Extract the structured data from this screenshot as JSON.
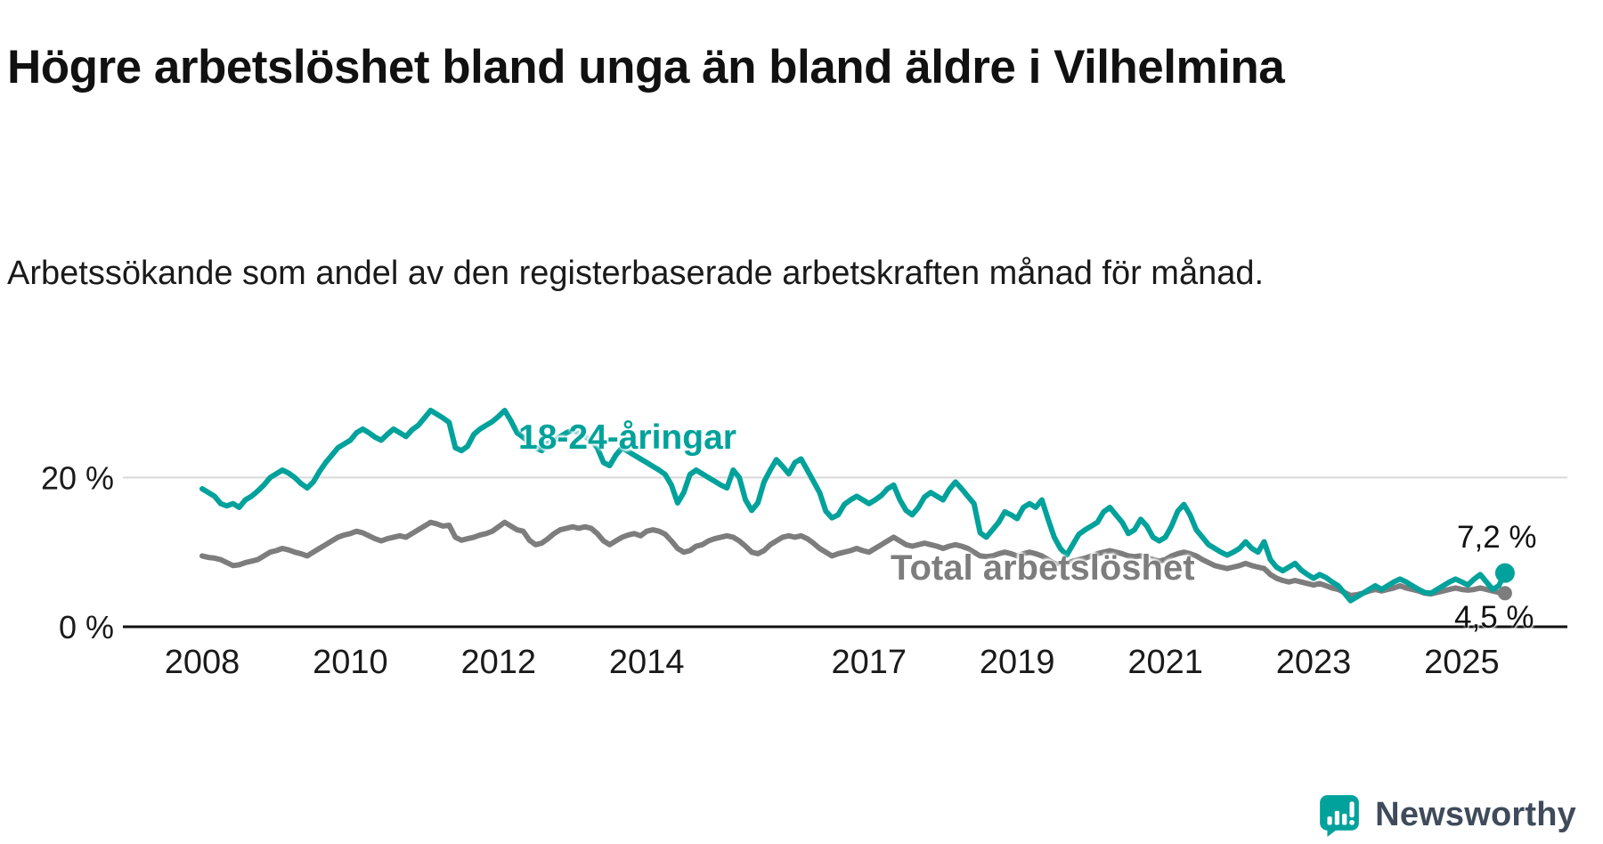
{
  "chart_data": {
    "type": "line",
    "title": "Högre arbetslöshet bland unga än bland äldre i Vilhelmina",
    "subtitle": "Arbetssökande som andel av den registerbaserade arbetskraften månad för månad.",
    "unit": "%",
    "x_start": 2008.0,
    "x_step": 0.083333,
    "xlim": [
      2007.4,
      2026.5
    ],
    "ylim": [
      0,
      31
    ],
    "grid": "horizontal",
    "grid_values": [
      20
    ],
    "yticks": [
      {
        "value": 0,
        "label": "0 %"
      },
      {
        "value": 20,
        "label": "20 %"
      }
    ],
    "xticks": [
      {
        "value": 2008,
        "label": "2008"
      },
      {
        "value": 2010,
        "label": "2010"
      },
      {
        "value": 2012,
        "label": "2012"
      },
      {
        "value": 2014,
        "label": "2014"
      },
      {
        "value": 2017,
        "label": "2017"
      },
      {
        "value": 2019,
        "label": "2019"
      },
      {
        "value": 2021,
        "label": "2021"
      },
      {
        "value": 2023,
        "label": "2023"
      },
      {
        "value": 2025,
        "label": "2025"
      }
    ],
    "series": [
      {
        "name": "Total arbetslöshet",
        "color": "#7d7d7d",
        "end_value": 4.5,
        "end_label": "4,5 %",
        "values": [
          9.5,
          9.3,
          9.2,
          9.0,
          8.6,
          8.2,
          8.3,
          8.6,
          8.8,
          9.0,
          9.5,
          10.0,
          10.2,
          10.5,
          10.3,
          10.0,
          9.8,
          9.5,
          10.0,
          10.5,
          11.0,
          11.5,
          12.0,
          12.3,
          12.5,
          12.8,
          12.6,
          12.2,
          11.8,
          11.5,
          11.8,
          12.0,
          12.2,
          12.0,
          12.5,
          13.0,
          13.5,
          14.0,
          13.8,
          13.5,
          13.6,
          12.0,
          11.6,
          11.8,
          12.0,
          12.3,
          12.5,
          12.8,
          13.4,
          14.0,
          13.5,
          13.0,
          12.8,
          11.6,
          11.0,
          11.2,
          11.8,
          12.5,
          13.0,
          13.2,
          13.4,
          13.2,
          13.4,
          13.2,
          12.5,
          11.5,
          11.0,
          11.5,
          12.0,
          12.3,
          12.5,
          12.2,
          12.8,
          13.0,
          12.8,
          12.4,
          11.5,
          10.5,
          10.0,
          10.2,
          10.8,
          11.0,
          11.5,
          11.8,
          12.0,
          12.2,
          12.0,
          11.5,
          10.8,
          10.0,
          9.8,
          10.2,
          11.0,
          11.5,
          12.0,
          12.2,
          12.0,
          12.2,
          11.8,
          11.2,
          10.5,
          10.0,
          9.5,
          9.8,
          10.0,
          10.2,
          10.5,
          10.2,
          10.0,
          10.5,
          11.0,
          11.5,
          12.0,
          11.5,
          11.0,
          10.8,
          11.0,
          11.2,
          11.0,
          10.8,
          10.5,
          10.8,
          11.0,
          10.8,
          10.5,
          10.0,
          9.5,
          9.4,
          9.5,
          9.8,
          10.0,
          9.8,
          9.5,
          9.8,
          10.0,
          9.8,
          9.5,
          9.0,
          8.5,
          8.4,
          8.5,
          8.8,
          9.0,
          9.2,
          9.5,
          9.8,
          10.0,
          10.2,
          10.0,
          9.8,
          9.5,
          9.4,
          9.5,
          9.3,
          9.0,
          8.8,
          9.0,
          9.5,
          9.8,
          10.0,
          9.8,
          9.5,
          9.0,
          8.6,
          8.2,
          8.0,
          7.8,
          8.0,
          8.2,
          8.5,
          8.2,
          8.0,
          7.8,
          7.0,
          6.5,
          6.2,
          6.0,
          6.2,
          6.0,
          5.8,
          5.6,
          5.8,
          5.5,
          5.2,
          5.0,
          4.6,
          4.2,
          4.3,
          4.5,
          4.8,
          5.0,
          4.8,
          5.0,
          5.2,
          5.5,
          5.2,
          5.0,
          4.8,
          4.5,
          4.4,
          4.6,
          4.8,
          5.0,
          5.2,
          5.0,
          4.9,
          5.0,
          5.2,
          5.0,
          4.8,
          4.6,
          4.5
        ]
      },
      {
        "name": "18-24-åringar",
        "color": "#00a29b",
        "end_value": 7.2,
        "end_label": "7,2 %",
        "values": [
          18.5,
          18.0,
          17.5,
          16.5,
          16.2,
          16.5,
          16.0,
          17.0,
          17.5,
          18.2,
          19.0,
          20.0,
          20.5,
          21.0,
          20.6,
          20.0,
          19.2,
          18.6,
          19.4,
          20.8,
          22.0,
          23.0,
          24.0,
          24.5,
          25.0,
          26.0,
          26.5,
          26.0,
          25.4,
          25.0,
          25.8,
          26.5,
          26.0,
          25.5,
          26.4,
          27.0,
          28.0,
          29.0,
          28.5,
          28.0,
          27.4,
          24.0,
          23.6,
          24.2,
          25.8,
          26.5,
          27.0,
          27.5,
          28.2,
          29.0,
          27.6,
          26.0,
          25.4,
          24.6,
          24.0,
          23.6,
          24.6,
          25.0,
          25.5,
          26.0,
          26.4,
          26.0,
          25.5,
          25.0,
          24.0,
          22.0,
          21.6,
          23.0,
          24.0,
          23.5,
          23.0,
          22.5,
          22.0,
          21.5,
          21.0,
          20.4,
          19.0,
          16.6,
          18.0,
          20.4,
          21.0,
          20.5,
          20.0,
          19.5,
          19.0,
          18.6,
          21.0,
          20.0,
          17.0,
          15.6,
          16.6,
          19.4,
          21.0,
          22.4,
          21.5,
          20.5,
          22.0,
          22.5,
          21.0,
          19.5,
          18.0,
          15.5,
          14.6,
          15.0,
          16.4,
          17.0,
          17.5,
          17.0,
          16.5,
          17.0,
          17.6,
          18.5,
          19.0,
          17.0,
          15.6,
          15.0,
          16.0,
          17.4,
          18.0,
          17.5,
          17.0,
          18.4,
          19.4,
          18.5,
          17.5,
          16.5,
          12.6,
          12.0,
          13.0,
          14.0,
          15.4,
          15.0,
          14.5,
          16.0,
          16.5,
          16.0,
          17.0,
          14.4,
          12.0,
          10.5,
          9.6,
          11.0,
          12.4,
          13.0,
          13.5,
          14.0,
          15.4,
          16.0,
          15.0,
          14.0,
          12.5,
          13.0,
          14.4,
          13.5,
          12.0,
          11.5,
          12.0,
          13.5,
          15.5,
          16.4,
          15.0,
          13.0,
          12.0,
          11.0,
          10.5,
          10.0,
          9.6,
          10.0,
          10.5,
          11.4,
          10.5,
          10.0,
          11.4,
          9.0,
          8.0,
          7.5,
          8.0,
          8.5,
          7.6,
          7.0,
          6.5,
          7.0,
          6.6,
          6.0,
          5.5,
          4.5,
          3.5,
          4.0,
          4.5,
          5.0,
          5.5,
          5.0,
          5.5,
          6.0,
          6.4,
          6.0,
          5.5,
          5.0,
          4.6,
          4.5,
          5.0,
          5.5,
          6.0,
          6.4,
          6.0,
          5.6,
          6.4,
          7.0,
          6.0,
          5.0,
          5.5,
          7.2
        ]
      }
    ]
  },
  "footer": {
    "brand": "Newsworthy",
    "brand_color": "#00a29b",
    "logo": "newsworthy-speech-bubble-chart-icon"
  }
}
